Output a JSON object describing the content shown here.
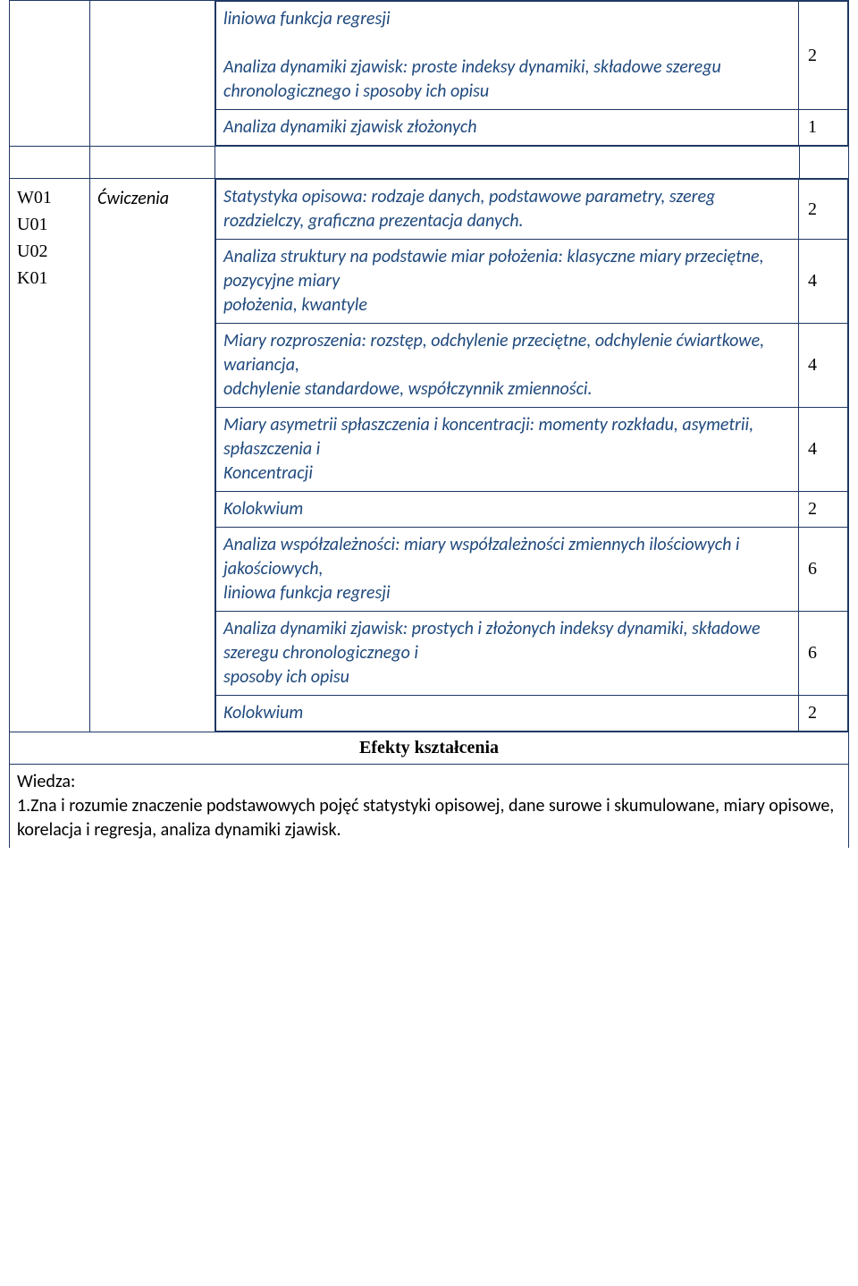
{
  "colors": {
    "border": "#1f3864",
    "topic_text": "#1f497d",
    "body_text": "#000000",
    "background": "#ffffff"
  },
  "fonts": {
    "topic": {
      "family": "Calibri",
      "style": "italic",
      "size_pt": 15
    },
    "hours": {
      "family": "Times New Roman",
      "size_pt": 15
    },
    "codes": {
      "family": "Times New Roman",
      "size_pt": 15
    },
    "effects_header": {
      "family": "Times New Roman",
      "weight": "bold",
      "size_pt": 15
    }
  },
  "upper": {
    "items": [
      {
        "text": "liniowa funkcja regresji\n\nAnaliza dynamiki zjawisk: proste indeksy dynamiki, składowe szeregu chronologicznego i sposoby ich opisu",
        "hours": "2"
      },
      {
        "text": "Analiza dynamiki zjawisk złożonych",
        "hours": "1"
      }
    ]
  },
  "lower": {
    "codes": [
      "W01",
      "U01",
      "U02",
      "K01"
    ],
    "type_label": "Ćwiczenia",
    "items": [
      {
        "text": " Statystyka opisowa: rodzaje danych, podstawowe parametry, szereg rozdzielczy, graficzna prezentacja danych.",
        "hours": "2"
      },
      {
        "text": "Analiza struktury na podstawie miar położenia: klasyczne miary przeciętne, pozycyjne miary\npołożenia, kwantyle",
        "hours": "4"
      },
      {
        "text": "Miary rozproszenia: rozstęp, odchylenie przeciętne, odchylenie ćwiartkowe, wariancja,\nodchylenie standardowe, współczynnik zmienności.",
        "hours": "4"
      },
      {
        "text": "Miary asymetrii spłaszczenia i koncentracji: momenty rozkładu, asymetrii, spłaszczenia i\nKoncentracji",
        "hours": "4"
      },
      {
        "text": "Kolokwium",
        "hours": "2"
      },
      {
        "text": "Analiza współzależności: miary współzależności zmiennych ilościowych i jakościowych,\nliniowa funkcja regresji",
        "hours": "6"
      },
      {
        "text": "Analiza dynamiki zjawisk: prostych i złożonych indeksy dynamiki, składowe szeregu chronologicznego i\nsposoby ich opisu",
        "hours": "6"
      },
      {
        "text": "Kolokwium",
        "hours": "2"
      }
    ]
  },
  "effects_header": "Efekty kształcenia",
  "wiedza": {
    "label": "Wiedza:",
    "item1": "1.Zna i rozumie znaczenie podstawowych pojęć statystyki opisowej, dane surowe i skumulowane, miary opisowe, korelacja i regresja, analiza dynamiki zjawisk."
  }
}
